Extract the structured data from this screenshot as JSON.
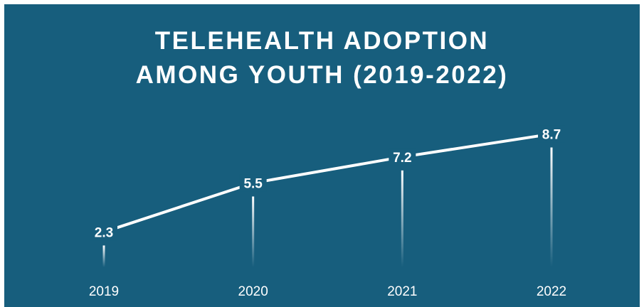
{
  "chart_data": {
    "type": "line",
    "title": "TELEHEALTH ADOPTION\nAMONG YOUTH (2019-2022)",
    "categories": [
      "2019",
      "2020",
      "2021",
      "2022"
    ],
    "values": [
      2.3,
      5.5,
      7.2,
      8.7
    ],
    "data_labels": [
      "2.3",
      "5.5",
      "7.2",
      "8.7"
    ],
    "xlabel": "",
    "ylabel": "",
    "ylim": [
      0,
      10
    ],
    "grid": false,
    "legend": "none",
    "colors": {
      "background": "#175e7d",
      "line": "#ffffff",
      "text": "#ffffff"
    }
  }
}
